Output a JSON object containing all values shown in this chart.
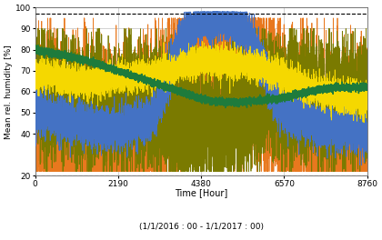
{
  "title": "",
  "xlabel": "Time [Hour]",
  "xlabel2": "(1/1/2016 : 00 - 1/1/2017 : 00)",
  "ylabel": "Mean rel. humidity [%]",
  "xlim": [
    0,
    8760
  ],
  "ylim": [
    20,
    100
  ],
  "yticks": [
    20,
    40,
    50,
    60,
    70,
    80,
    90,
    100
  ],
  "xticks": [
    0,
    2190,
    4380,
    6570,
    8760
  ],
  "dashed_line_y": 97,
  "colors": {
    "orange": "#E8781E",
    "blue": "#4472C4",
    "olive": "#7A7A00",
    "yellow": "#F5D800",
    "green": "#1E7B3C"
  },
  "background": "#FFFFFF",
  "grid_color": "#C0C0C0"
}
